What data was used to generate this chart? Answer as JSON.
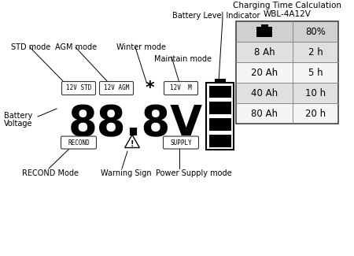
{
  "bg_color": "#ffffff",
  "title_table_line1": "Charging Time Calculation",
  "title_table_line2": "WBL-4A12V",
  "table_header_col2": "80%",
  "table_rows": [
    [
      "8 Ah",
      "2 h"
    ],
    [
      "20 Ah",
      "5 h"
    ],
    [
      "40 Ah",
      "10 h"
    ],
    [
      "80 Ah",
      "20 h"
    ]
  ],
  "table_row_colors": [
    "#e0e0e0",
    "#f5f5f5",
    "#e0e0e0",
    "#f5f5f5"
  ],
  "display_text": "88.8V",
  "label_std": "STD mode",
  "label_agm": "AGM mode",
  "label_winter": "Winter mode",
  "label_maintain": "Maintain mode",
  "label_battery_voltage1": "Battery",
  "label_battery_voltage2": "Voltage",
  "label_recond": "RECOND Mode",
  "label_warning": "Warning Sign",
  "label_supply": "Power Supply mode",
  "label_battery_indicator": "Battery Level Indicator",
  "badge_std": "12V STD",
  "badge_agm": "12V AGM",
  "badge_maintain": "12V  M",
  "badge_recond": "RECOND",
  "badge_supply": "SUPPLY",
  "font_size_display": 38,
  "font_size_labels": 7,
  "font_size_badge": 5.5,
  "font_size_table": 8.5,
  "font_size_table_title": 7.5
}
